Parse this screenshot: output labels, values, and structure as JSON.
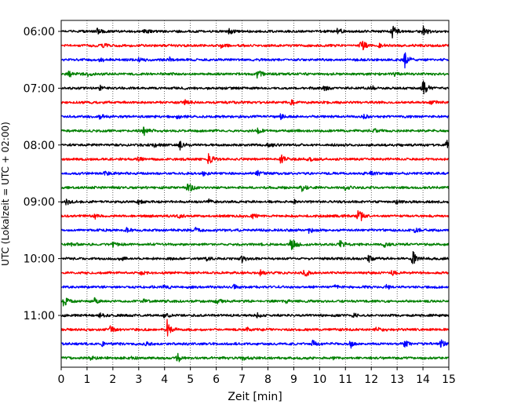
{
  "chart_data": {
    "type": "line",
    "title": "",
    "xlabel": "Zeit  [min]",
    "ylabel": "UTC (Lokalzeit = UTC + 02:00)",
    "xlim": [
      0,
      15
    ],
    "x_ticks": [
      "0",
      "1",
      "2",
      "3",
      "4",
      "5",
      "6",
      "7",
      "8",
      "9",
      "10",
      "11",
      "12",
      "13",
      "14",
      "15"
    ],
    "y_tick_labels": [
      "06:00",
      "07:00",
      "08:00",
      "09:00",
      "10:00",
      "11:00"
    ],
    "grid": "vertical dotted",
    "trace_interval_min": 15,
    "colors": [
      "#000000",
      "#ff0000",
      "#0000ff",
      "#008000"
    ],
    "series": [
      {
        "start": "06:00",
        "color": "#000000",
        "events": [
          [
            1.4,
            0.4
          ],
          [
            3.2,
            0.3
          ],
          [
            6.5,
            0.5
          ],
          [
            10.7,
            0.5
          ],
          [
            12.8,
            1.0
          ],
          [
            14.0,
            0.9
          ]
        ]
      },
      {
        "start": "06:15",
        "color": "#ff0000",
        "events": [
          [
            1.6,
            0.5
          ],
          [
            6.2,
            0.4
          ],
          [
            11.6,
            1.3
          ],
          [
            12.3,
            0.3
          ]
        ]
      },
      {
        "start": "06:30",
        "color": "#0000ff",
        "events": [
          [
            1.5,
            0.3
          ],
          [
            3.0,
            0.3
          ],
          [
            4.2,
            0.3
          ],
          [
            13.3,
            1.0
          ]
        ]
      },
      {
        "start": "06:45",
        "color": "#008000",
        "events": [
          [
            0.3,
            0.4
          ],
          [
            1.0,
            0.3
          ],
          [
            7.6,
            0.7
          ],
          [
            12.9,
            0.3
          ]
        ]
      },
      {
        "start": "07:00",
        "color": "#000000",
        "events": [
          [
            1.5,
            0.3
          ],
          [
            10.1,
            0.5
          ],
          [
            12.0,
            0.3
          ],
          [
            14.0,
            1.4
          ]
        ]
      },
      {
        "start": "07:15",
        "color": "#ff0000",
        "events": [
          [
            4.8,
            0.3
          ],
          [
            8.9,
            0.3
          ],
          [
            14.3,
            0.3
          ]
        ]
      },
      {
        "start": "07:30",
        "color": "#0000ff",
        "events": [
          [
            1.5,
            0.3
          ],
          [
            4.5,
            0.3
          ],
          [
            8.5,
            0.3
          ],
          [
            11.7,
            0.3
          ]
        ]
      },
      {
        "start": "07:45",
        "color": "#008000",
        "events": [
          [
            3.2,
            0.6
          ],
          [
            7.6,
            0.3
          ],
          [
            12.1,
            0.3
          ]
        ]
      },
      {
        "start": "08:00",
        "color": "#000000",
        "events": [
          [
            3.6,
            0.3
          ],
          [
            4.6,
            0.6
          ],
          [
            8.0,
            0.3
          ],
          [
            14.9,
            0.8
          ]
        ]
      },
      {
        "start": "08:15",
        "color": "#ff0000",
        "events": [
          [
            3.0,
            0.3
          ],
          [
            5.7,
            0.8
          ],
          [
            8.5,
            0.6
          ],
          [
            9.6,
            0.3
          ]
        ]
      },
      {
        "start": "08:30",
        "color": "#0000ff",
        "events": [
          [
            1.7,
            0.3
          ],
          [
            5.5,
            0.3
          ],
          [
            7.6,
            0.3
          ],
          [
            12.0,
            0.3
          ]
        ]
      },
      {
        "start": "08:45",
        "color": "#008000",
        "events": [
          [
            4.9,
            1.0
          ],
          [
            9.3,
            0.5
          ],
          [
            11.0,
            0.3
          ]
        ]
      },
      {
        "start": "09:00",
        "color": "#000000",
        "events": [
          [
            0.2,
            0.5
          ],
          [
            3.0,
            0.3
          ],
          [
            5.7,
            0.3
          ],
          [
            9.0,
            0.3
          ],
          [
            13.0,
            0.3
          ]
        ]
      },
      {
        "start": "09:15",
        "color": "#ff0000",
        "events": [
          [
            1.3,
            0.3
          ],
          [
            4.5,
            0.3
          ],
          [
            7.4,
            0.3
          ],
          [
            11.5,
            1.4
          ]
        ]
      },
      {
        "start": "09:30",
        "color": "#0000ff",
        "events": [
          [
            2.5,
            0.3
          ],
          [
            5.2,
            0.3
          ],
          [
            9.6,
            0.5
          ],
          [
            13.7,
            0.3
          ]
        ]
      },
      {
        "start": "09:45",
        "color": "#008000",
        "events": [
          [
            0.4,
            0.3
          ],
          [
            2.0,
            0.3
          ],
          [
            8.9,
            1.3
          ],
          [
            10.8,
            0.6
          ],
          [
            12.5,
            0.3
          ]
        ]
      },
      {
        "start": "10:00",
        "color": "#000000",
        "events": [
          [
            2.3,
            0.3
          ],
          [
            5.6,
            0.3
          ],
          [
            7.0,
            0.5
          ],
          [
            11.9,
            0.5
          ],
          [
            13.6,
            1.1
          ]
        ]
      },
      {
        "start": "10:15",
        "color": "#ff0000",
        "events": [
          [
            3.1,
            0.4
          ],
          [
            7.7,
            0.4
          ],
          [
            9.4,
            0.7
          ],
          [
            12.8,
            0.3
          ]
        ]
      },
      {
        "start": "10:30",
        "color": "#0000ff",
        "events": [
          [
            4.0,
            0.4
          ],
          [
            6.7,
            0.3
          ],
          [
            10.6,
            0.3
          ],
          [
            12.6,
            0.3
          ]
        ]
      },
      {
        "start": "10:45",
        "color": "#008000",
        "events": [
          [
            0.1,
            0.8
          ],
          [
            1.3,
            0.4
          ],
          [
            3.2,
            0.4
          ],
          [
            6.0,
            0.5
          ],
          [
            8.7,
            0.3
          ]
        ]
      },
      {
        "start": "11:00",
        "color": "#000000",
        "events": [
          [
            1.5,
            0.3
          ],
          [
            4.0,
            0.3
          ],
          [
            7.6,
            0.3
          ],
          [
            11.3,
            0.3
          ]
        ]
      },
      {
        "start": "11:15",
        "color": "#ff0000",
        "events": [
          [
            1.9,
            0.4
          ],
          [
            4.1,
            1.3
          ],
          [
            7.2,
            0.3
          ],
          [
            12.2,
            0.4
          ]
        ]
      },
      {
        "start": "11:30",
        "color": "#0000ff",
        "events": [
          [
            1.6,
            0.3
          ],
          [
            3.3,
            0.3
          ],
          [
            9.7,
            0.6
          ],
          [
            11.2,
            0.5
          ],
          [
            13.3,
            0.5
          ],
          [
            14.7,
            0.6
          ]
        ]
      },
      {
        "start": "11:45",
        "color": "#008000",
        "events": [
          [
            1.1,
            0.3
          ],
          [
            2.7,
            0.3
          ],
          [
            4.5,
            0.6
          ],
          [
            7.0,
            0.3
          ],
          [
            10.5,
            0.3
          ]
        ]
      }
    ]
  }
}
